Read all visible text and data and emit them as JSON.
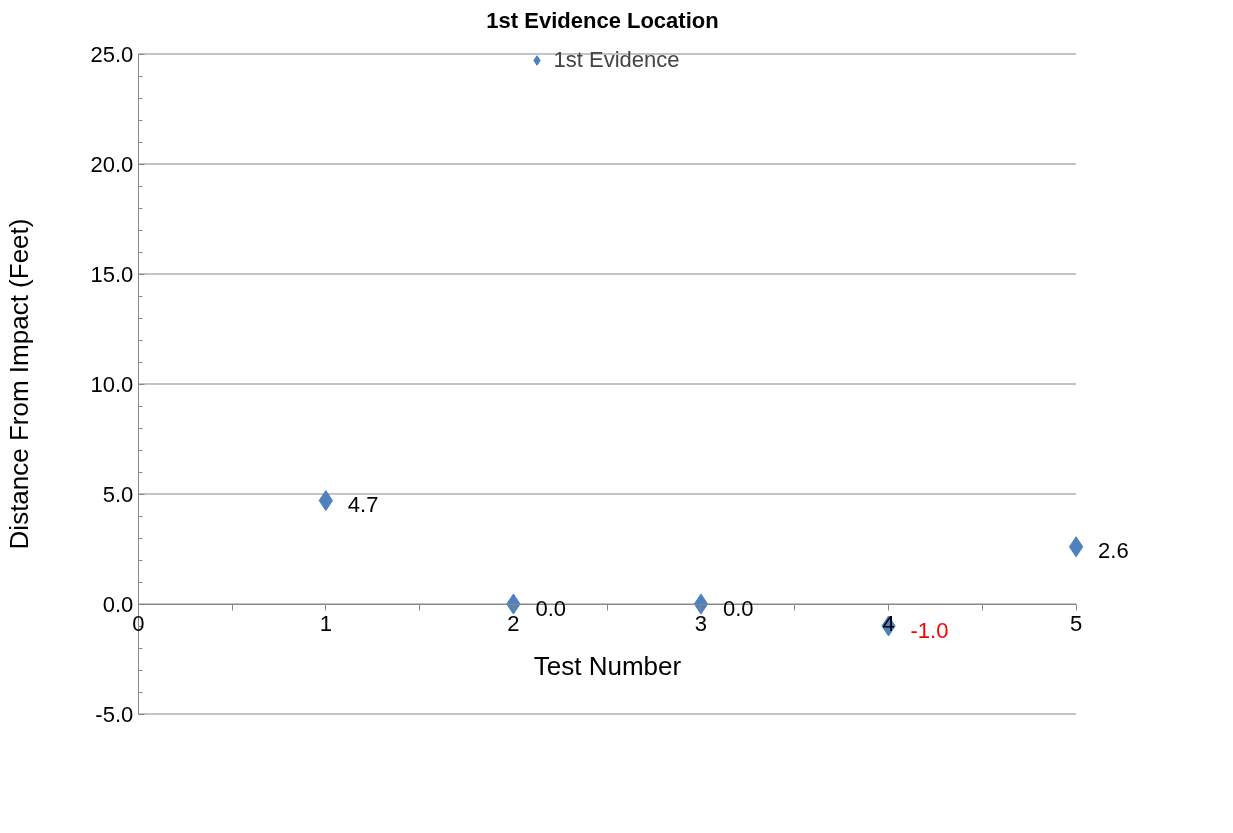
{
  "chart_data": {
    "type": "scatter",
    "title": "1st Evidence Location",
    "xlabel": "Test Number",
    "ylabel": "Distance From Impact (Feet)",
    "x": [
      1,
      2,
      3,
      4,
      5
    ],
    "series": [
      {
        "name": "1st Evidence",
        "color": "#4f81bd",
        "values": [
          4.7,
          0.0,
          0.0,
          -1.0,
          2.6
        ],
        "value_labels": [
          "4.7",
          "0.0",
          "0.0",
          "-1.0",
          "2.6"
        ]
      }
    ],
    "xlim": [
      0,
      5
    ],
    "xticks": [
      0,
      1,
      2,
      3,
      4,
      5
    ],
    "ylim": [
      -5,
      25
    ],
    "yticks": [
      {
        "value": -5,
        "label": "-5.0"
      },
      {
        "value": 0,
        "label": "0.0"
      },
      {
        "value": 5,
        "label": "5.0"
      },
      {
        "value": 10,
        "label": "10.0"
      },
      {
        "value": 15,
        "label": "15.0"
      },
      {
        "value": 20,
        "label": "20.0"
      },
      {
        "value": 25,
        "label": "25.0"
      }
    ],
    "grid": "y",
    "legend": "top",
    "marker": "diamond"
  }
}
